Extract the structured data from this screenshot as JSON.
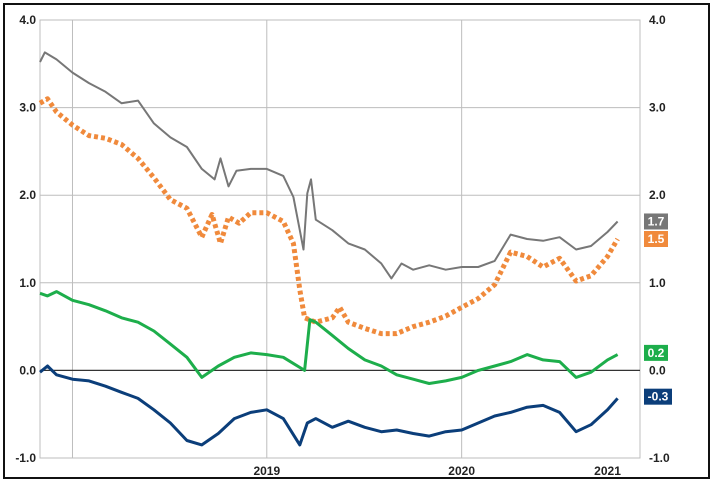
{
  "chart_data": {
    "type": "line",
    "title": "",
    "xlabel": "",
    "ylabel": "",
    "ylim": [
      -1.0,
      4.0
    ],
    "x_range": [
      "2018-05",
      "2021-06"
    ],
    "grid": true,
    "y_ticks": [
      "4.0",
      "3.0",
      "2.0",
      "1.0",
      "0.0",
      "-1.0"
    ],
    "y_tick_values": [
      4.0,
      3.0,
      2.0,
      1.0,
      0.0,
      -1.0
    ],
    "x_tick_labels": [
      {
        "label": "2019",
        "x": "2019-07-01"
      },
      {
        "label": "2020",
        "x": "2020-07-01"
      },
      {
        "label": "2021",
        "x": "2021-04-01"
      }
    ],
    "x_gridlines": [
      "2018-07-01",
      "2019-07-01",
      "2020-07-01",
      "2021-07-01"
    ],
    "series": [
      {
        "key": "gray",
        "color": "#777777",
        "style": "solid",
        "end_label": "1.7",
        "points": [
          [
            "2018-05-01",
            3.52
          ],
          [
            "2018-05-10",
            3.63
          ],
          [
            "2018-06-01",
            3.55
          ],
          [
            "2018-07-01",
            3.4
          ],
          [
            "2018-08-01",
            3.28
          ],
          [
            "2018-09-01",
            3.18
          ],
          [
            "2018-10-01",
            3.05
          ],
          [
            "2018-11-01",
            3.08
          ],
          [
            "2018-12-01",
            2.82
          ],
          [
            "2019-01-01",
            2.66
          ],
          [
            "2019-02-01",
            2.55
          ],
          [
            "2019-03-01",
            2.3
          ],
          [
            "2019-03-25",
            2.18
          ],
          [
            "2019-04-05",
            2.42
          ],
          [
            "2019-04-20",
            2.1
          ],
          [
            "2019-05-05",
            2.28
          ],
          [
            "2019-06-01",
            2.3
          ],
          [
            "2019-07-01",
            2.3
          ],
          [
            "2019-08-01",
            2.22
          ],
          [
            "2019-08-20",
            1.98
          ],
          [
            "2019-09-01",
            1.6
          ],
          [
            "2019-09-08",
            1.38
          ],
          [
            "2019-09-15",
            2.02
          ],
          [
            "2019-09-22",
            2.18
          ],
          [
            "2019-10-01",
            1.72
          ],
          [
            "2019-11-01",
            1.6
          ],
          [
            "2019-12-01",
            1.45
          ],
          [
            "2020-01-01",
            1.38
          ],
          [
            "2020-02-01",
            1.22
          ],
          [
            "2020-02-20",
            1.05
          ],
          [
            "2020-03-10",
            1.22
          ],
          [
            "2020-04-01",
            1.15
          ],
          [
            "2020-05-01",
            1.2
          ],
          [
            "2020-06-01",
            1.15
          ],
          [
            "2020-07-01",
            1.18
          ],
          [
            "2020-08-01",
            1.18
          ],
          [
            "2020-09-01",
            1.25
          ],
          [
            "2020-10-01",
            1.55
          ],
          [
            "2020-11-01",
            1.5
          ],
          [
            "2020-12-01",
            1.48
          ],
          [
            "2021-01-01",
            1.52
          ],
          [
            "2021-02-01",
            1.38
          ],
          [
            "2021-03-01",
            1.42
          ],
          [
            "2021-04-01",
            1.58
          ],
          [
            "2021-04-20",
            1.7
          ]
        ]
      },
      {
        "key": "orange",
        "color": "#F08A3C",
        "style": "dotted",
        "end_label": "1.5",
        "points": [
          [
            "2018-05-01",
            3.05
          ],
          [
            "2018-05-15",
            3.1
          ],
          [
            "2018-06-01",
            2.95
          ],
          [
            "2018-07-01",
            2.8
          ],
          [
            "2018-08-01",
            2.68
          ],
          [
            "2018-09-01",
            2.65
          ],
          [
            "2018-10-01",
            2.58
          ],
          [
            "2018-11-01",
            2.42
          ],
          [
            "2018-12-01",
            2.2
          ],
          [
            "2019-01-01",
            1.95
          ],
          [
            "2019-02-01",
            1.85
          ],
          [
            "2019-03-01",
            1.52
          ],
          [
            "2019-03-20",
            1.78
          ],
          [
            "2019-04-05",
            1.45
          ],
          [
            "2019-04-20",
            1.75
          ],
          [
            "2019-05-10",
            1.68
          ],
          [
            "2019-06-01",
            1.8
          ],
          [
            "2019-07-01",
            1.8
          ],
          [
            "2019-08-01",
            1.7
          ],
          [
            "2019-08-20",
            1.45
          ],
          [
            "2019-09-01",
            0.92
          ],
          [
            "2019-09-10",
            0.6
          ],
          [
            "2019-10-01",
            0.55
          ],
          [
            "2019-11-01",
            0.6
          ],
          [
            "2019-11-15",
            0.72
          ],
          [
            "2019-12-01",
            0.55
          ],
          [
            "2020-01-01",
            0.48
          ],
          [
            "2020-02-01",
            0.42
          ],
          [
            "2020-03-01",
            0.42
          ],
          [
            "2020-04-01",
            0.5
          ],
          [
            "2020-05-01",
            0.55
          ],
          [
            "2020-06-01",
            0.62
          ],
          [
            "2020-07-01",
            0.72
          ],
          [
            "2020-08-01",
            0.82
          ],
          [
            "2020-09-01",
            0.98
          ],
          [
            "2020-10-01",
            1.35
          ],
          [
            "2020-11-01",
            1.3
          ],
          [
            "2020-12-01",
            1.18
          ],
          [
            "2021-01-01",
            1.28
          ],
          [
            "2021-02-01",
            1.02
          ],
          [
            "2021-03-01",
            1.08
          ],
          [
            "2021-04-01",
            1.3
          ],
          [
            "2021-04-20",
            1.5
          ]
        ]
      },
      {
        "key": "green",
        "color": "#1DAE4B",
        "style": "solid",
        "end_label": "0.2",
        "points": [
          [
            "2018-05-01",
            0.88
          ],
          [
            "2018-05-15",
            0.85
          ],
          [
            "2018-06-01",
            0.9
          ],
          [
            "2018-07-01",
            0.8
          ],
          [
            "2018-08-01",
            0.75
          ],
          [
            "2018-09-01",
            0.68
          ],
          [
            "2018-10-01",
            0.6
          ],
          [
            "2018-11-01",
            0.55
          ],
          [
            "2018-12-01",
            0.45
          ],
          [
            "2019-01-01",
            0.3
          ],
          [
            "2019-02-01",
            0.15
          ],
          [
            "2019-03-01",
            -0.08
          ],
          [
            "2019-04-01",
            0.05
          ],
          [
            "2019-05-01",
            0.15
          ],
          [
            "2019-06-01",
            0.2
          ],
          [
            "2019-07-01",
            0.18
          ],
          [
            "2019-08-01",
            0.15
          ],
          [
            "2019-09-10",
            0.0
          ],
          [
            "2019-09-20",
            0.58
          ],
          [
            "2019-10-01",
            0.55
          ],
          [
            "2019-11-01",
            0.4
          ],
          [
            "2019-12-01",
            0.25
          ],
          [
            "2020-01-01",
            0.12
          ],
          [
            "2020-02-01",
            0.05
          ],
          [
            "2020-03-01",
            -0.05
          ],
          [
            "2020-04-01",
            -0.1
          ],
          [
            "2020-05-01",
            -0.15
          ],
          [
            "2020-06-01",
            -0.12
          ],
          [
            "2020-07-01",
            -0.08
          ],
          [
            "2020-08-01",
            0.0
          ],
          [
            "2020-09-01",
            0.05
          ],
          [
            "2020-10-01",
            0.1
          ],
          [
            "2020-11-01",
            0.18
          ],
          [
            "2020-12-01",
            0.12
          ],
          [
            "2021-01-01",
            0.1
          ],
          [
            "2021-02-01",
            -0.08
          ],
          [
            "2021-03-01",
            -0.02
          ],
          [
            "2021-04-01",
            0.12
          ],
          [
            "2021-04-20",
            0.18
          ]
        ]
      },
      {
        "key": "navy",
        "color": "#0B3E7A",
        "style": "solid",
        "end_label": "-0.3",
        "points": [
          [
            "2018-05-01",
            -0.02
          ],
          [
            "2018-05-15",
            0.05
          ],
          [
            "2018-06-01",
            -0.05
          ],
          [
            "2018-07-01",
            -0.1
          ],
          [
            "2018-08-01",
            -0.12
          ],
          [
            "2018-09-01",
            -0.18
          ],
          [
            "2018-10-01",
            -0.25
          ],
          [
            "2018-11-01",
            -0.32
          ],
          [
            "2018-12-01",
            -0.45
          ],
          [
            "2019-01-01",
            -0.6
          ],
          [
            "2019-02-01",
            -0.8
          ],
          [
            "2019-03-01",
            -0.85
          ],
          [
            "2019-04-01",
            -0.72
          ],
          [
            "2019-05-01",
            -0.55
          ],
          [
            "2019-06-01",
            -0.48
          ],
          [
            "2019-07-01",
            -0.45
          ],
          [
            "2019-08-01",
            -0.55
          ],
          [
            "2019-09-01",
            -0.85
          ],
          [
            "2019-09-15",
            -0.6
          ],
          [
            "2019-10-01",
            -0.55
          ],
          [
            "2019-11-01",
            -0.65
          ],
          [
            "2019-12-01",
            -0.58
          ],
          [
            "2020-01-01",
            -0.65
          ],
          [
            "2020-02-01",
            -0.7
          ],
          [
            "2020-03-01",
            -0.68
          ],
          [
            "2020-04-01",
            -0.72
          ],
          [
            "2020-05-01",
            -0.75
          ],
          [
            "2020-06-01",
            -0.7
          ],
          [
            "2020-07-01",
            -0.68
          ],
          [
            "2020-08-01",
            -0.6
          ],
          [
            "2020-09-01",
            -0.52
          ],
          [
            "2020-10-01",
            -0.48
          ],
          [
            "2020-11-01",
            -0.42
          ],
          [
            "2020-12-01",
            -0.4
          ],
          [
            "2021-01-01",
            -0.48
          ],
          [
            "2021-02-01",
            -0.7
          ],
          [
            "2021-03-01",
            -0.62
          ],
          [
            "2021-04-01",
            -0.45
          ],
          [
            "2021-04-20",
            -0.32
          ]
        ]
      }
    ]
  }
}
